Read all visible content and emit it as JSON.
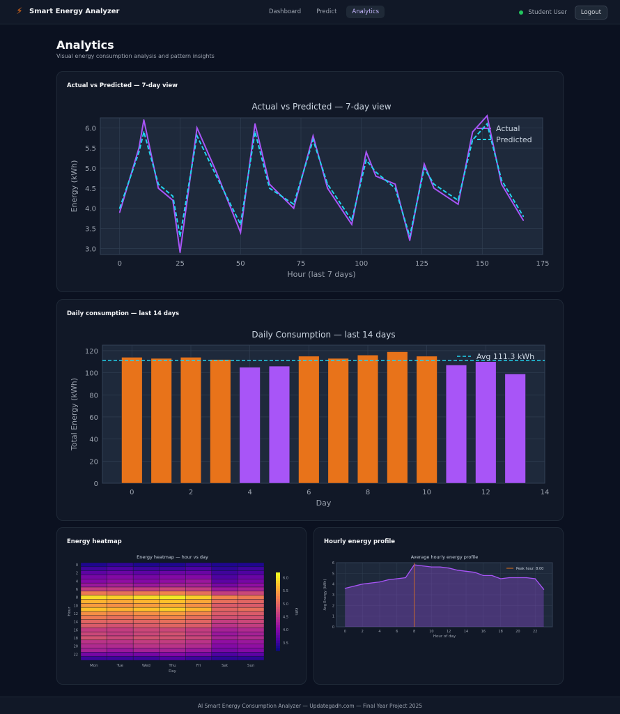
{
  "app": {
    "title": "Smart Energy Analyzer",
    "logo_icon": "lightning-bolt-icon"
  },
  "nav": {
    "links": [
      "Dashboard",
      "Predict",
      "Analytics"
    ],
    "active": "Analytics"
  },
  "user": {
    "name": "Student User",
    "status_color": "#22c55e",
    "logout_label": "Logout"
  },
  "page": {
    "title": "Analytics",
    "subtitle": "Visual energy consumption analysis and pattern insights"
  },
  "cards": {
    "line": {
      "title": "Actual vs Predicted — 7-day view"
    },
    "bar": {
      "title": "Daily consumption — last 14 days"
    },
    "heatmap": {
      "title": "Energy heatmap"
    },
    "profile": {
      "title": "Hourly energy profile"
    }
  },
  "footer": {
    "text": "AI Smart Energy Consumption Analyzer — Updategadh.com — Final Year Project 2025"
  },
  "chart_data": [
    {
      "type": "line",
      "title": "Actual vs Predicted — 7-day view",
      "xlabel": "Hour (last 7 days)",
      "ylabel": "Energy (kWh)",
      "xlim": [
        -8,
        175
      ],
      "ylim": [
        2.85,
        6.25
      ],
      "xticks": [
        0,
        25,
        50,
        75,
        100,
        125,
        150,
        175
      ],
      "yticks": [
        3.0,
        3.5,
        4.0,
        4.5,
        5.0,
        5.5,
        6.0
      ],
      "grid": true,
      "legend": "top-right",
      "x_points": [
        0,
        8,
        10,
        16,
        22,
        25,
        32,
        40,
        50,
        56,
        62,
        72,
        80,
        86,
        96,
        102,
        106,
        114,
        120,
        126,
        130,
        140,
        146,
        152,
        158,
        167
      ],
      "series": [
        {
          "name": "Actual",
          "color": "#a855f7",
          "style": "solid",
          "values": [
            3.9,
            5.5,
            6.2,
            4.5,
            4.2,
            2.9,
            6.0,
            4.9,
            3.4,
            6.1,
            4.6,
            4.0,
            5.8,
            4.5,
            3.6,
            5.4,
            4.8,
            4.6,
            3.2,
            5.1,
            4.5,
            4.1,
            5.9,
            6.3,
            4.6,
            3.7
          ]
        },
        {
          "name": "Predicted",
          "color": "#22d3ee",
          "style": "dashed",
          "values": [
            4.0,
            5.4,
            5.9,
            4.6,
            4.3,
            3.3,
            5.8,
            4.8,
            3.6,
            5.9,
            4.5,
            4.1,
            5.7,
            4.6,
            3.7,
            5.2,
            4.9,
            4.5,
            3.3,
            5.0,
            4.6,
            4.2,
            5.7,
            6.1,
            4.7,
            3.8
          ]
        }
      ]
    },
    {
      "type": "bar",
      "title": "Daily Consumption — last 14 days",
      "xlabel": "Day",
      "ylabel": "Total Energy (kWh)",
      "xlim": [
        -1,
        14
      ],
      "ylim": [
        0,
        125
      ],
      "xticks": [
        0,
        2,
        4,
        6,
        8,
        10,
        12,
        14
      ],
      "yticks": [
        0,
        20,
        40,
        60,
        80,
        100,
        120
      ],
      "categories": [
        0,
        1,
        2,
        3,
        4,
        5,
        6,
        7,
        8,
        9,
        10,
        11,
        12,
        13
      ],
      "values": [
        114,
        113,
        114,
        112,
        105,
        106,
        115,
        113,
        116,
        119,
        115,
        107,
        110,
        99
      ],
      "colors_above_avg": "#e8731a",
      "colors_below_avg": "#a855f7",
      "reference_line": {
        "name": "Avg 111.3 kWh",
        "value": 111.3,
        "color": "#22d3ee"
      },
      "grid": true,
      "legend": "top-right"
    },
    {
      "type": "heatmap",
      "title": "Energy heatmap — hour vs day",
      "xlabel": "Day",
      "ylabel": "Hour",
      "colorbar_label": "kWh",
      "categories": [
        "Mon",
        "Tue",
        "Wed",
        "Thu",
        "Fri",
        "Sat",
        "Sun"
      ],
      "y_ticks": [
        0,
        2,
        4,
        6,
        8,
        10,
        12,
        14,
        16,
        18,
        20,
        22
      ],
      "colorbar_ticks": [
        3.5,
        4.0,
        4.5,
        5.0,
        5.5,
        6.0
      ],
      "vlim": [
        3.2,
        6.2
      ],
      "colormap": "plasma",
      "values": [
        [
          3.3,
          3.4,
          3.3,
          3.3,
          3.4,
          3.3,
          3.3
        ],
        [
          3.5,
          3.6,
          3.5,
          3.5,
          3.6,
          3.4,
          3.5
        ],
        [
          3.7,
          3.8,
          3.7,
          3.8,
          3.8,
          3.5,
          3.6
        ],
        [
          3.9,
          4.0,
          3.9,
          4.0,
          4.0,
          3.6,
          3.8
        ],
        [
          4.0,
          4.1,
          4.0,
          4.1,
          4.2,
          3.7,
          3.9
        ],
        [
          4.2,
          4.3,
          4.2,
          4.3,
          4.3,
          3.9,
          4.1
        ],
        [
          4.6,
          4.6,
          4.6,
          4.7,
          4.6,
          4.2,
          4.3
        ],
        [
          5.2,
          5.1,
          5.2,
          5.3,
          5.1,
          4.6,
          4.7
        ],
        [
          6.0,
          5.9,
          6.0,
          6.1,
          5.9,
          5.3,
          5.2
        ],
        [
          5.7,
          5.6,
          5.7,
          5.8,
          5.6,
          5.1,
          5.0
        ],
        [
          5.5,
          5.4,
          5.5,
          5.6,
          5.4,
          4.9,
          4.9
        ],
        [
          5.8,
          5.7,
          5.8,
          5.9,
          5.7,
          5.0,
          5.1
        ],
        [
          5.4,
          5.3,
          5.4,
          5.5,
          5.3,
          4.9,
          4.9
        ],
        [
          5.2,
          5.1,
          5.2,
          5.3,
          5.1,
          4.8,
          4.8
        ],
        [
          5.0,
          5.0,
          5.0,
          5.1,
          5.0,
          4.6,
          4.7
        ],
        [
          4.9,
          4.8,
          4.9,
          5.0,
          4.9,
          4.5,
          4.6
        ],
        [
          4.6,
          4.6,
          4.7,
          4.7,
          4.6,
          4.3,
          4.4
        ],
        [
          4.7,
          4.6,
          4.7,
          4.8,
          4.6,
          4.2,
          4.3
        ],
        [
          4.8,
          4.7,
          4.8,
          4.8,
          4.7,
          4.3,
          4.4
        ],
        [
          4.5,
          4.5,
          4.6,
          4.6,
          4.5,
          4.1,
          4.2
        ],
        [
          4.4,
          4.4,
          4.5,
          4.5,
          4.4,
          4.0,
          4.1
        ],
        [
          4.3,
          4.2,
          4.3,
          4.3,
          4.2,
          3.9,
          4.0
        ],
        [
          3.9,
          3.9,
          3.9,
          4.0,
          3.9,
          3.6,
          3.7
        ],
        [
          3.5,
          3.5,
          3.5,
          3.6,
          3.5,
          3.4,
          3.4
        ]
      ]
    },
    {
      "type": "area",
      "title": "Average hourly energy profile",
      "xlabel": "Hour of day",
      "ylabel": "Avg Energy (kWh)",
      "xlim": [
        -1,
        24
      ],
      "ylim": [
        0,
        6
      ],
      "xticks": [
        0,
        2,
        4,
        6,
        8,
        10,
        12,
        14,
        16,
        18,
        20,
        22
      ],
      "yticks": [
        0,
        1,
        2,
        3,
        4,
        5,
        6
      ],
      "x": [
        0,
        1,
        2,
        3,
        4,
        5,
        6,
        7,
        8,
        9,
        10,
        11,
        12,
        13,
        14,
        15,
        16,
        17,
        18,
        19,
        20,
        21,
        22,
        23
      ],
      "values": [
        3.6,
        3.8,
        4.0,
        4.1,
        4.2,
        4.4,
        4.5,
        4.6,
        5.8,
        5.7,
        5.6,
        5.6,
        5.5,
        5.3,
        5.2,
        5.1,
        4.8,
        4.8,
        4.5,
        4.6,
        4.6,
        4.6,
        4.5,
        3.5
      ],
      "peak_line": {
        "name": "Peak hour: 8:00",
        "x": 8,
        "color": "#e8731a"
      },
      "color": "#a855f7",
      "grid": true,
      "legend": "top-right"
    }
  ]
}
